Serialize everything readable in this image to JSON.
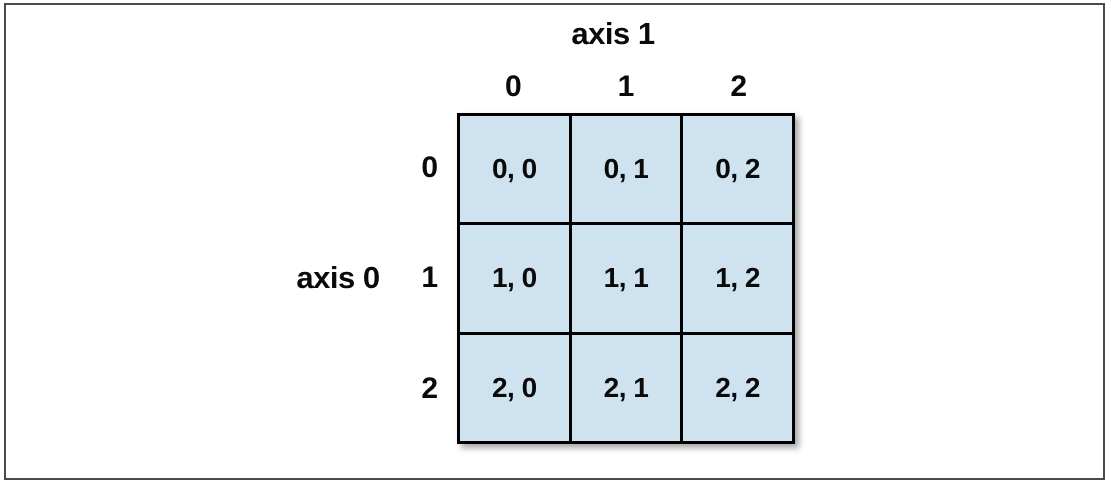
{
  "diagram": {
    "axis1_label": "axis 1",
    "axis0_label": "axis 0",
    "col_headers": [
      "0",
      "1",
      "2"
    ],
    "row_headers": [
      "0",
      "1",
      "2"
    ],
    "cells": [
      [
        "0, 0",
        "0, 1",
        "0, 2"
      ],
      [
        "1, 0",
        "1, 1",
        "1, 2"
      ],
      [
        "2, 0",
        "2, 1",
        "2, 2"
      ]
    ],
    "colors": {
      "cell_fill": "#cfe2f0",
      "grid_line": "#000000",
      "frame_border": "#4a4a4a",
      "text": "#0a0a0a"
    }
  }
}
